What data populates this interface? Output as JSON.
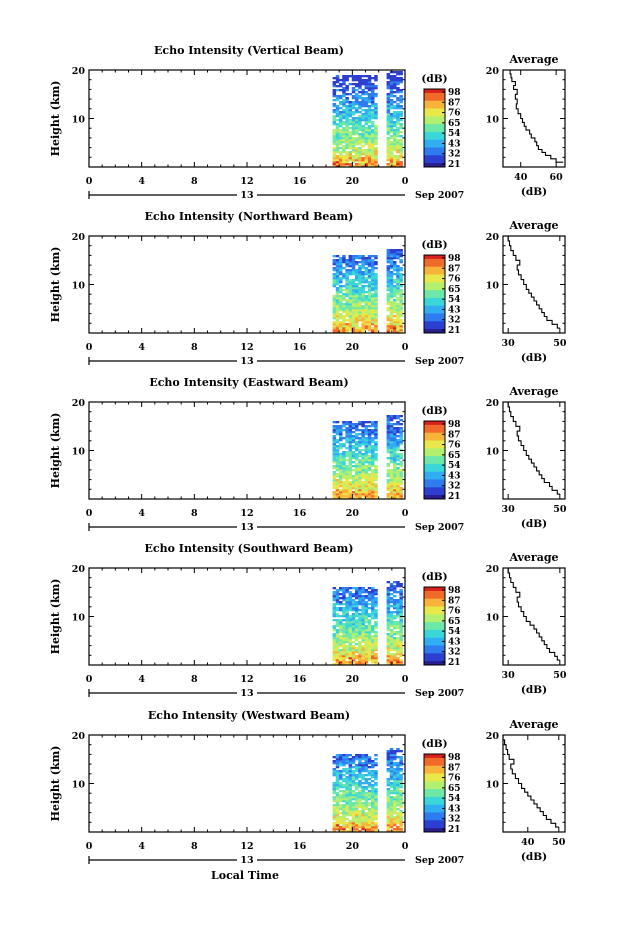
{
  "chart_data": [
    {
      "type": "heatmap",
      "title": "Echo Intensity (Vertical Beam)",
      "ylabel": "Height (km)",
      "xlim": [
        0,
        24
      ],
      "ylim": [
        0,
        20
      ],
      "x_ticks": [
        "0",
        "4",
        "8",
        "12",
        "16",
        "20",
        "0"
      ],
      "y_ticks": [
        "20",
        "10"
      ],
      "date_label": "13",
      "month_label": "Sep 2007",
      "data_columns": [
        [
          18.5,
          21.9
        ],
        [
          22.6,
          23.7
        ]
      ],
      "colorbar": {
        "unit": "(dB)",
        "ticks": [
          "98",
          "87",
          "76",
          "65",
          "54",
          "43",
          "32",
          "21"
        ]
      },
      "average": {
        "title": "Average",
        "xlabel": "(dB)",
        "x_ticks": [
          "40",
          "60"
        ],
        "xlim": [
          30,
          65
        ],
        "y_ticks": [
          "20",
          "10"
        ],
        "ylim": [
          0,
          20
        ],
        "profile": [
          [
            64,
            1
          ],
          [
            60,
            1.7
          ],
          [
            57,
            2.4
          ],
          [
            54,
            3
          ],
          [
            52,
            3.6
          ],
          [
            50,
            4.4
          ],
          [
            49,
            5.2
          ],
          [
            48,
            6
          ],
          [
            46,
            6.8
          ],
          [
            45,
            7.6
          ],
          [
            43,
            8.4
          ],
          [
            42,
            9.2
          ],
          [
            41,
            10
          ],
          [
            40,
            11
          ],
          [
            38.5,
            12
          ],
          [
            37.5,
            13
          ],
          [
            38,
            14
          ],
          [
            37,
            15
          ],
          [
            38,
            16
          ],
          [
            36,
            16.8
          ],
          [
            37,
            17.6
          ],
          [
            35,
            18.4
          ],
          [
            34.5,
            19.2
          ],
          [
            34,
            20
          ]
        ]
      }
    },
    {
      "type": "heatmap",
      "title": "Echo Intensity (Northward Beam)",
      "ylabel": "Height (km)",
      "xlim": [
        0,
        24
      ],
      "ylim": [
        0,
        20
      ],
      "x_ticks": [
        "0",
        "4",
        "8",
        "12",
        "16",
        "20",
        "0"
      ],
      "y_ticks": [
        "20",
        "10"
      ],
      "date_label": "13",
      "month_label": "Sep 2007",
      "data_columns": [
        [
          18.5,
          21.9
        ],
        [
          22.6,
          23.7
        ]
      ],
      "colorbar": {
        "unit": "(dB)",
        "ticks": [
          "98",
          "87",
          "76",
          "65",
          "54",
          "43",
          "32",
          "21"
        ]
      },
      "average": {
        "title": "Average",
        "xlabel": "(dB)",
        "x_ticks": [
          "30",
          "50"
        ],
        "xlim": [
          28,
          52
        ],
        "y_ticks": [
          "20",
          "10"
        ],
        "ylim": [
          0,
          20
        ],
        "profile": [
          [
            50,
            1
          ],
          [
            49,
            1.8
          ],
          [
            47,
            2.6
          ],
          [
            45,
            3.4
          ],
          [
            44,
            4.2
          ],
          [
            43,
            5
          ],
          [
            42,
            5.8
          ],
          [
            41,
            6.6
          ],
          [
            40,
            7.4
          ],
          [
            39,
            8.2
          ],
          [
            38,
            9
          ],
          [
            37,
            10
          ],
          [
            36,
            11
          ],
          [
            35,
            12
          ],
          [
            34,
            13
          ],
          [
            33.5,
            14
          ],
          [
            34.5,
            15
          ],
          [
            33,
            16
          ],
          [
            32,
            17
          ],
          [
            31,
            18
          ],
          [
            30.5,
            19
          ],
          [
            30,
            20
          ]
        ]
      }
    },
    {
      "type": "heatmap",
      "title": "Echo Intensity (Eastward Beam)",
      "ylabel": "Height (km)",
      "xlim": [
        0,
        24
      ],
      "ylim": [
        0,
        20
      ],
      "x_ticks": [
        "0",
        "4",
        "8",
        "12",
        "16",
        "20",
        "0"
      ],
      "y_ticks": [
        "20",
        "10"
      ],
      "date_label": "13",
      "month_label": "Sep 2007",
      "data_columns": [
        [
          18.5,
          21.9
        ],
        [
          22.6,
          23.7
        ]
      ],
      "colorbar": {
        "unit": "(dB)",
        "ticks": [
          "98",
          "87",
          "76",
          "65",
          "54",
          "43",
          "32",
          "21"
        ]
      },
      "average": {
        "title": "Average",
        "xlabel": "(dB)",
        "x_ticks": [
          "30",
          "50"
        ],
        "xlim": [
          28,
          52
        ],
        "y_ticks": [
          "20",
          "10"
        ],
        "ylim": [
          0,
          20
        ],
        "profile": [
          [
            50,
            1
          ],
          [
            49,
            1.8
          ],
          [
            47,
            2.6
          ],
          [
            46,
            3.4
          ],
          [
            44,
            4.2
          ],
          [
            43,
            5
          ],
          [
            42,
            5.8
          ],
          [
            41,
            6.6
          ],
          [
            40,
            7.4
          ],
          [
            39,
            8.2
          ],
          [
            38,
            9
          ],
          [
            37,
            10
          ],
          [
            36,
            11
          ],
          [
            35,
            12
          ],
          [
            34,
            13
          ],
          [
            33.5,
            14
          ],
          [
            34.5,
            15
          ],
          [
            33,
            16
          ],
          [
            32,
            17
          ],
          [
            31,
            18
          ],
          [
            30.5,
            19
          ],
          [
            30,
            20
          ]
        ]
      }
    },
    {
      "type": "heatmap",
      "title": "Echo Intensity (Southward Beam)",
      "ylabel": "Height (km)",
      "xlim": [
        0,
        24
      ],
      "ylim": [
        0,
        20
      ],
      "x_ticks": [
        "0",
        "4",
        "8",
        "12",
        "16",
        "20",
        "0"
      ],
      "y_ticks": [
        "20",
        "10"
      ],
      "date_label": "13",
      "month_label": "Sep 2007",
      "data_columns": [
        [
          18.5,
          21.9
        ],
        [
          22.6,
          23.7
        ]
      ],
      "colorbar": {
        "unit": "(dB)",
        "ticks": [
          "98",
          "87",
          "76",
          "65",
          "54",
          "43",
          "32",
          "21"
        ]
      },
      "average": {
        "title": "Average",
        "xlabel": "(dB)",
        "x_ticks": [
          "30",
          "50"
        ],
        "xlim": [
          28,
          52
        ],
        "y_ticks": [
          "20",
          "10"
        ],
        "ylim": [
          0,
          20
        ],
        "profile": [
          [
            50,
            1
          ],
          [
            49,
            1.8
          ],
          [
            48,
            2.6
          ],
          [
            46,
            3.4
          ],
          [
            45,
            4.2
          ],
          [
            44,
            5
          ],
          [
            43,
            5.8
          ],
          [
            42,
            6.6
          ],
          [
            41,
            7.4
          ],
          [
            40,
            8.2
          ],
          [
            38.5,
            9
          ],
          [
            37,
            10
          ],
          [
            36,
            11
          ],
          [
            35,
            12
          ],
          [
            34,
            13
          ],
          [
            33.5,
            14
          ],
          [
            34.5,
            15
          ],
          [
            33,
            16
          ],
          [
            32,
            17
          ],
          [
            31,
            18
          ],
          [
            30.5,
            19
          ],
          [
            30,
            20
          ]
        ]
      }
    },
    {
      "type": "heatmap",
      "title": "Echo Intensity (Westward Beam)",
      "ylabel": "Height (km)",
      "xlim": [
        0,
        24
      ],
      "ylim": [
        0,
        20
      ],
      "x_ticks": [
        "0",
        "4",
        "8",
        "12",
        "16",
        "20",
        "0"
      ],
      "y_ticks": [
        "20",
        "10"
      ],
      "date_label": "13",
      "month_label": "Sep 2007",
      "data_columns": [
        [
          18.5,
          21.9
        ],
        [
          22.6,
          23.7
        ]
      ],
      "colorbar": {
        "unit": "(dB)",
        "ticks": [
          "98",
          "87",
          "76",
          "65",
          "54",
          "43",
          "32",
          "21"
        ]
      },
      "average": {
        "title": "Average",
        "xlabel": "(dB)",
        "x_ticks": [
          "40",
          "50"
        ],
        "xlim": [
          32,
          52
        ],
        "y_ticks": [
          "20",
          "10"
        ],
        "ylim": [
          0,
          20
        ],
        "profile": [
          [
            50,
            1
          ],
          [
            49,
            1.8
          ],
          [
            47.5,
            2.6
          ],
          [
            46,
            3.4
          ],
          [
            45,
            4.2
          ],
          [
            44,
            5
          ],
          [
            43,
            5.8
          ],
          [
            42,
            6.6
          ],
          [
            41,
            7.4
          ],
          [
            40,
            8.2
          ],
          [
            39,
            9
          ],
          [
            38,
            10
          ],
          [
            37,
            11
          ],
          [
            36,
            12
          ],
          [
            35,
            13
          ],
          [
            34.5,
            14
          ],
          [
            35.5,
            15
          ],
          [
            34,
            16
          ],
          [
            33.5,
            17
          ],
          [
            33,
            18
          ],
          [
            32.5,
            19
          ],
          [
            32,
            20
          ]
        ]
      }
    }
  ],
  "footer": {
    "xlabel": "Local Time"
  },
  "colors": {
    "colormap": [
      "#2a1d8c",
      "#2c3fd0",
      "#2f7cf0",
      "#31aef2",
      "#3bd6d8",
      "#6ee8a8",
      "#b4f070",
      "#e8e84a",
      "#f8b43a",
      "#f06a2a",
      "#d8201e"
    ]
  }
}
